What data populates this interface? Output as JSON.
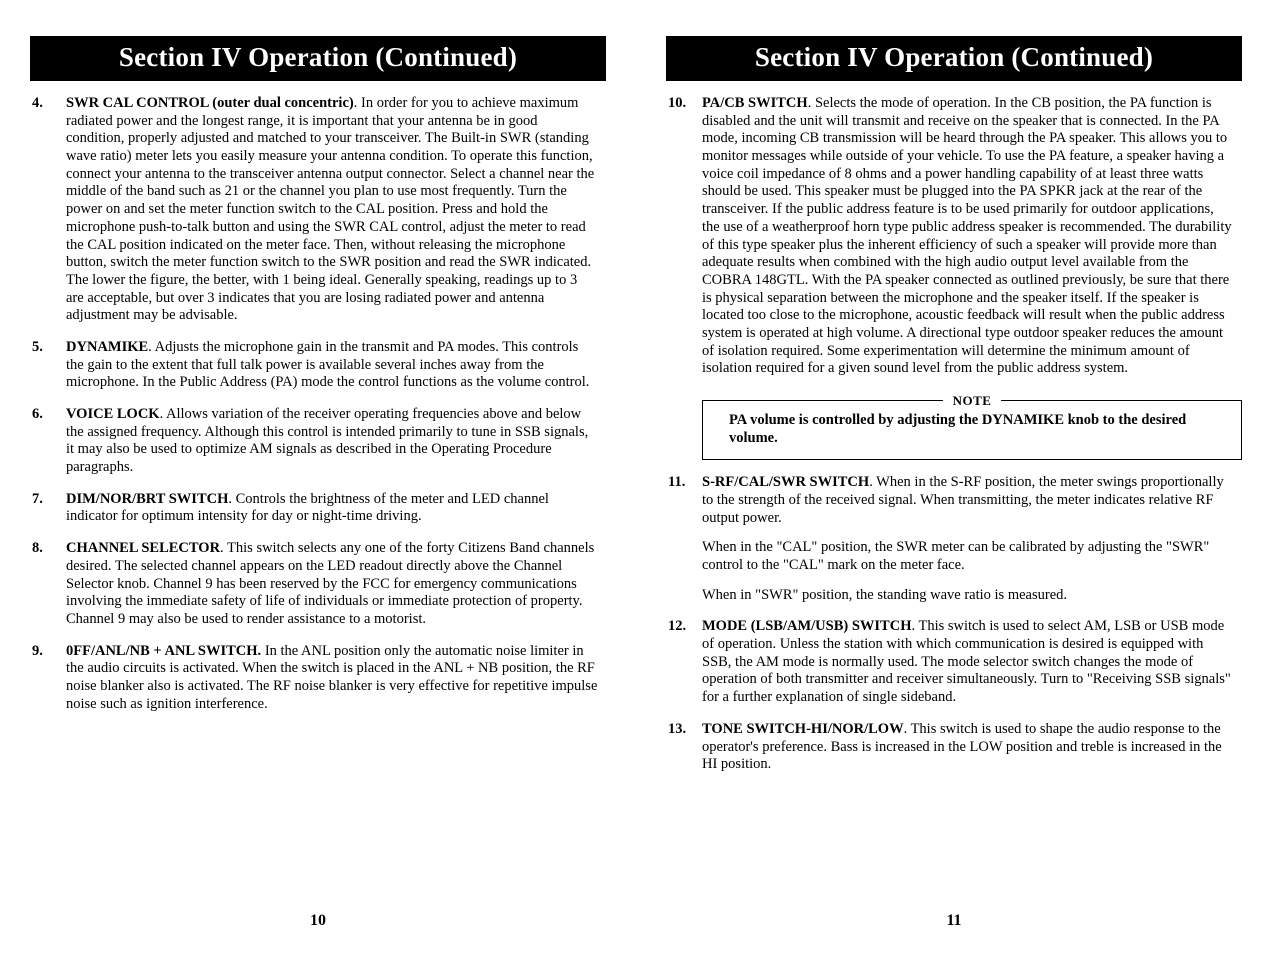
{
  "left": {
    "header": "Section IV Operation (Continued)",
    "items": [
      {
        "num": "4.",
        "title": "SWR CAL CONTROL (outer dual concentric)",
        "text": ". In order for you to achieve maximum radiated power and the longest range, it is important that your antenna be in good condition, properly adjusted and matched to your transceiver.  The Built-in SWR (standing wave ratio) meter lets you easily measure your antenna condition. To operate this function, connect your antenna to the transceiver antenna output connector. Select a channel near the middle of the band such as 21 or the channel you plan to use most frequently. Turn the power on and set the meter function switch to the CAL position. Press and hold the microphone push-to-talk button and using the SWR CAL control, adjust the meter to read the CAL position indicated on the meter face. Then, without releasing the microphone button, switch the meter function switch to the SWR position and read the SWR indicated. The lower the figure, the better, with 1 being ideal. Generally speaking, readings up to 3 are acceptable, but over 3 indicates that you are losing radiated power and antenna adjustment may be advisable."
      },
      {
        "num": "5.",
        "title": "DYNAMIKE",
        "text": ". Adjusts the microphone gain in the transmit and PA modes. This controls the gain to the extent that full talk power is available several inches away from the microphone. In the Public Address (PA) mode the control functions as the volume control."
      },
      {
        "num": "6.",
        "title": "VOICE LOCK",
        "text": ". Allows variation of the receiver operating frequencies above and below the assigned frequency. Although this control is intended primarily to tune in SSB signals, it may also be used to optimize AM signals as described in the Operating Procedure paragraphs."
      },
      {
        "num": "7.",
        "title": "DIM/NOR/BRT SWITCH",
        "text": ". Controls the brightness of the meter and LED channel indicator for optimum intensity for day or night-time driving."
      },
      {
        "num": "8.",
        "title": "CHANNEL SELECTOR",
        "text": ". This switch selects any one of the forty Citizens Band channels desired. The selected channel appears on the LED readout directly above the Channel Selector knob. Channel 9 has been reserved by the FCC for emergency communications involving the immediate safety of life of individuals or immediate protection of property. Channel 9 may also be used to render assistance to a motorist."
      },
      {
        "num": "9.",
        "title": "0FF/ANL/NB + ANL SWITCH.",
        "text": " In the ANL position only the automatic noise limiter in the audio circuits is activated. When the switch is placed in the ANL + NB position, the RF noise blanker also is activated. The RF noise blanker is very effective for repetitive impulse noise such as ignition interference."
      }
    ],
    "pageNumber": "10"
  },
  "right": {
    "header": "Section IV Operation (Continued)",
    "item10": {
      "num": "10.",
      "title": "PA/CB SWITCH",
      "text": ". Selects the mode of operation. In the CB position, the PA function is disabled and the unit will transmit and receive on the speaker that is connected. In the PA mode, incoming CB transmission will be heard through the PA speaker. This allows you to monitor messages while outside of your vehicle. To use the PA feature, a speaker having a voice coil impedance of 8 ohms and a power handling capability of at least three watts should be used. This speaker must be plugged into the PA SPKR jack at the rear of the transceiver. If the public address feature is to be used primarily for outdoor applications, the use of a weatherproof horn type public address speaker is recommended. The durability of this type speaker plus the inherent efficiency of such a speaker will provide more than adequate results when combined with the high audio output level available from the COBRA 148GTL. With the PA speaker connected as outlined previously, be sure that there is physical separation between the microphone and the speaker itself. If the speaker is located too close to the microphone, acoustic feedback will result when the public address system is operated at high volume. A directional type outdoor speaker reduces the amount of isolation required. Some experimentation will determine the minimum amount of isolation required for a given sound level from the public address system."
    },
    "note": {
      "label": "NOTE",
      "text": "PA volume is controlled by adjusting the DYNAMIKE knob to the desired volume."
    },
    "item11": {
      "num": "11.",
      "title": "S-RF/CAL/SWR SWITCH",
      "p1": ". When in the S-RF position, the meter swings proportionally to the strength of the received signal. When transmitting, the meter indicates relative RF output power.",
      "p2": "When in the \"CAL\" position, the SWR meter can be calibrated by adjusting the \"SWR\" control to the \"CAL\" mark on the meter face.",
      "p3": "When in \"SWR\" position, the standing wave ratio is measured."
    },
    "item12": {
      "num": "12.",
      "title": "MODE (LSB/AM/USB) SWITCH",
      "text": ". This switch is used to select AM, LSB or USB mode of operation. Unless the station with which communication is desired is equipped with SSB, the AM mode is normally used. The mode selector switch changes the mode of operation of both transmitter and receiver simultaneously. Turn to \"Receiving SSB signals\" for a further explanation of single sideband."
    },
    "item13": {
      "num": "13.",
      "title": "TONE SWITCH-HI/NOR/LOW",
      "text": ". This switch is used to shape the audio response to the operator's preference. Bass is increased in the LOW position and treble is increased in the HI position."
    },
    "pageNumber": "11"
  }
}
